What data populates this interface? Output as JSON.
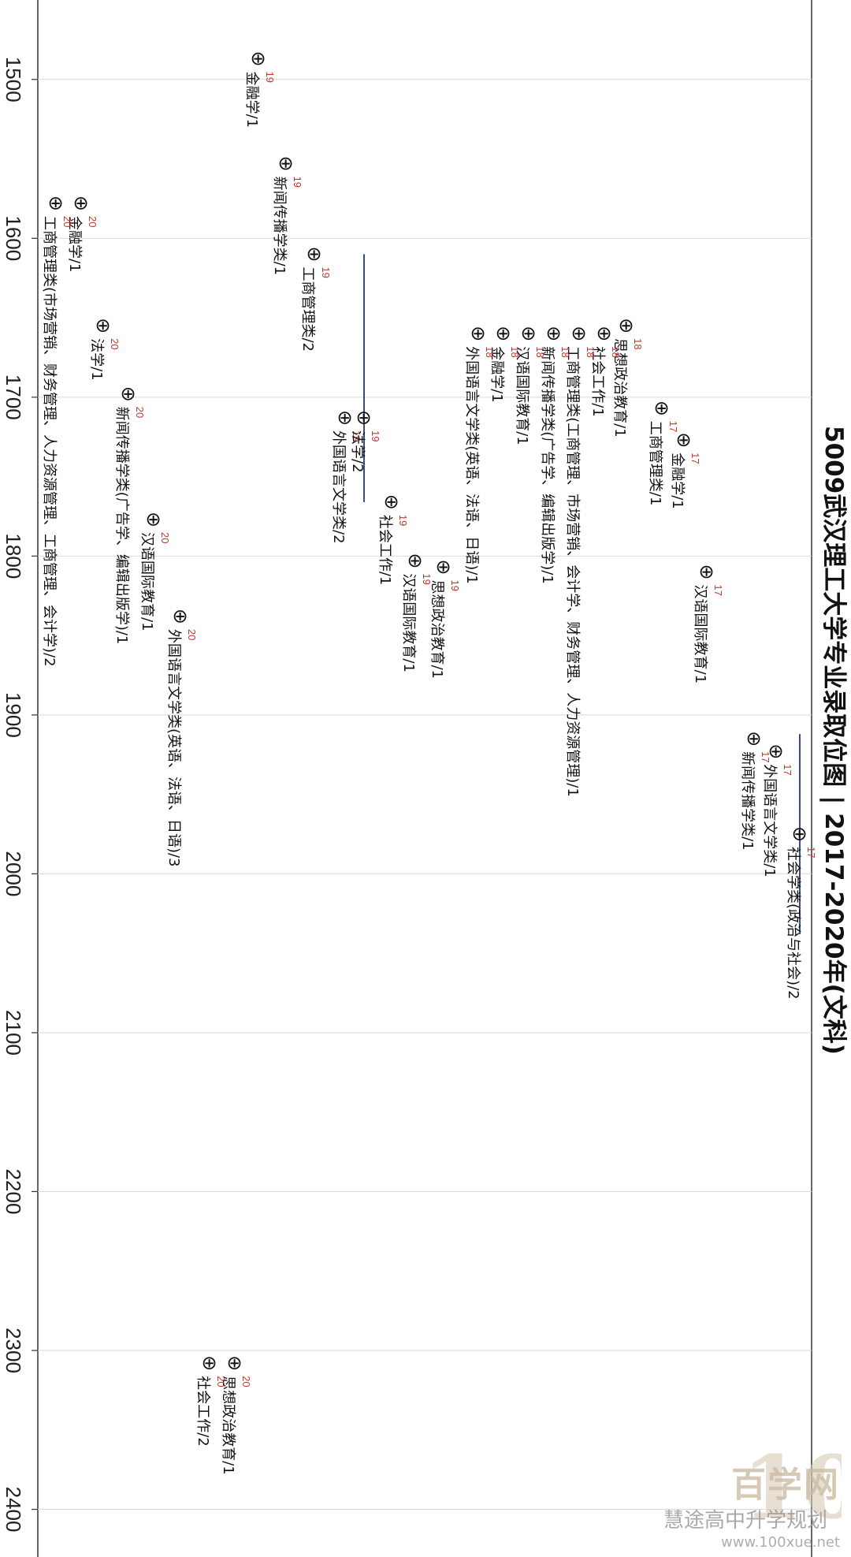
{
  "chart_data": {
    "type": "scatter",
    "title": "5009武汉理工大学专业录取位图 | 2017-2020年(文科)",
    "xlim": [
      1450,
      2430
    ],
    "xticks": [
      1500,
      1600,
      1700,
      1800,
      1900,
      2000,
      2100,
      2200,
      2300,
      2400
    ],
    "grid": true,
    "marker_glyph": "⊕",
    "colors": {
      "year": "#c0392b",
      "range": "#3a4a8c",
      "label": "#111111",
      "grid": "#d9d9d9",
      "axis": "#333333"
    },
    "series": [
      {
        "year": "17",
        "points": [
          {
            "x": 1707,
            "label": "工商管理类/1"
          },
          {
            "x": 1727,
            "label": "金融学/1"
          },
          {
            "x": 1810,
            "label": "汉语国际教育/1"
          },
          {
            "x": 1915,
            "label": "新闻传播学类/1"
          },
          {
            "x": 1923,
            "label": "外国语言文学类/1"
          },
          {
            "x": 1975,
            "label": "社会学类(政治与社会)/2",
            "range": [
              1912,
              2038
            ]
          }
        ]
      },
      {
        "year": "18",
        "points": [
          {
            "x": 1655,
            "label": "思想政治教育/1"
          },
          {
            "x": 1660,
            "label": "社会工作/1"
          },
          {
            "x": 1660,
            "label": "工商管理类(工商管理、市场营销、会计学、财务管理、人力资源管理)/1"
          },
          {
            "x": 1660,
            "label": "新闻传播学类(广告学、编辑出版学)/1"
          },
          {
            "x": 1660,
            "label": "汉语国际教育/1"
          },
          {
            "x": 1660,
            "label": "金融学/1"
          },
          {
            "x": 1660,
            "label": "外国语言文学类(英语、法语、日语)/1"
          }
        ]
      },
      {
        "year": "19",
        "points": [
          {
            "x": 1487,
            "label": "金融学/1"
          },
          {
            "x": 1553,
            "label": "新闻传播学类/1"
          },
          {
            "x": 1610,
            "label": "工商管理类/2"
          },
          {
            "x": 1713,
            "label": "外国语言文学类/2"
          },
          {
            "x": 1713,
            "label": "法学/2",
            "range": [
              1610,
              1766
            ]
          },
          {
            "x": 1766,
            "label": "社会工作/1"
          },
          {
            "x": 1803,
            "label": "汉语国际教育/1"
          },
          {
            "x": 1807,
            "label": "思想政治教育/1"
          }
        ]
      },
      {
        "year": "20",
        "points": [
          {
            "x": 1578,
            "label": "金融学/1"
          },
          {
            "x": 1578,
            "label": "工商管理类(市场营销、财务管理、人力资源管理、工商管理、会计学)/2"
          },
          {
            "x": 1655,
            "label": "法学/1"
          },
          {
            "x": 1698,
            "label": "新闻传播学类(广告学、编辑出版学)/1"
          },
          {
            "x": 1777,
            "label": "汉语国际教育/1"
          },
          {
            "x": 1838,
            "label": "外国语言文学类(英语、法语、日语)/3"
          },
          {
            "x": 2308,
            "label": "思想政治教育/1"
          },
          {
            "x": 2308,
            "label": "社会工作/2"
          }
        ]
      }
    ]
  },
  "watermark": {
    "logo_text": "100",
    "brand_text": "百学网",
    "account_text": "慧途高中升学规划",
    "url_text": "www.100xue.net"
  }
}
